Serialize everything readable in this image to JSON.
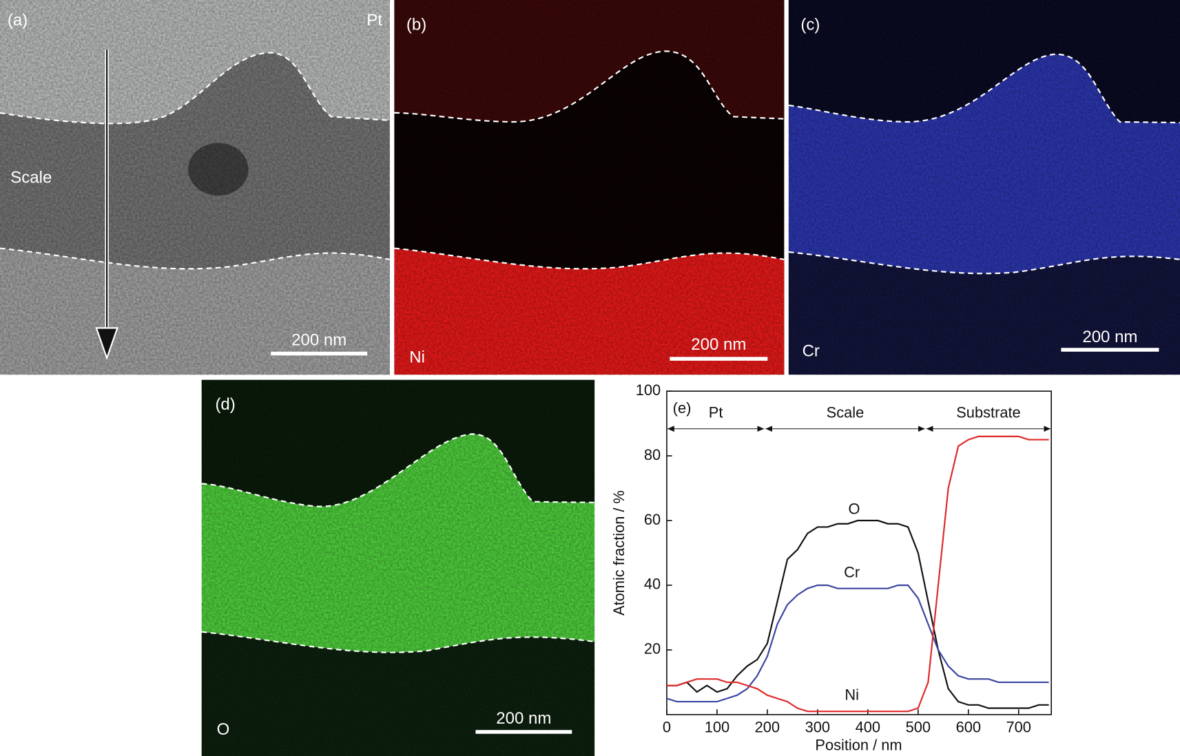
{
  "panels": [
    {
      "label": "(a)",
      "top": "Pt",
      "middle": "Scale",
      "scale_bar": "200 nm"
    },
    {
      "label": "(b)",
      "element": "Ni",
      "scale_bar": "200 nm"
    },
    {
      "label": "(c)",
      "element": "Cr",
      "scale_bar": "200 nm"
    },
    {
      "label": "(d)",
      "element": "O",
      "scale_bar": "200 nm"
    }
  ],
  "chart_data": {
    "type": "line",
    "label": "(e)",
    "x_label": "Position / nm",
    "y_label": "Atomic fraction / %",
    "xlim": [
      0,
      765
    ],
    "ylim": [
      0,
      100
    ],
    "xticks": [
      0,
      100,
      200,
      300,
      400,
      500,
      600,
      700
    ],
    "yticks": [
      20,
      40,
      60,
      80,
      100
    ],
    "regions": [
      {
        "label": "Pt",
        "from": 0,
        "to": 195
      },
      {
        "label": "Scale",
        "from": 195,
        "to": 515
      },
      {
        "label": "Substrate",
        "from": 515,
        "to": 765
      }
    ],
    "x": [
      0,
      20,
      40,
      60,
      80,
      100,
      120,
      140,
      160,
      180,
      200,
      220,
      240,
      260,
      280,
      300,
      320,
      340,
      360,
      380,
      400,
      420,
      440,
      460,
      480,
      500,
      520,
      540,
      560,
      580,
      600,
      620,
      640,
      660,
      680,
      700,
      720,
      740,
      760
    ],
    "series": [
      {
        "name": "O",
        "color": "#111111",
        "values": [
          9,
          9,
          10,
          7,
          9,
          7,
          8,
          12,
          15,
          17,
          22,
          35,
          48,
          51,
          56,
          58,
          58,
          59,
          59,
          60,
          60,
          60,
          59,
          59,
          58,
          50,
          35,
          20,
          8,
          4,
          3,
          3,
          2,
          2,
          2,
          2,
          2,
          3,
          3
        ]
      },
      {
        "name": "Cr",
        "color": "#3a44a0",
        "values": [
          5,
          4,
          4,
          4,
          4,
          4,
          5,
          6,
          8,
          12,
          18,
          28,
          34,
          37,
          39,
          40,
          40,
          39,
          39,
          39,
          39,
          39,
          39,
          40,
          40,
          36,
          28,
          20,
          15,
          12,
          11,
          11,
          11,
          10,
          10,
          10,
          10,
          10,
          10
        ]
      },
      {
        "name": "Ni",
        "color": "#e02828",
        "values": [
          9,
          9,
          10,
          11,
          11,
          11,
          10,
          10,
          9,
          8,
          6,
          5,
          4,
          2,
          1,
          1,
          1,
          1,
          1,
          1,
          1,
          1,
          1,
          1,
          1,
          2,
          10,
          40,
          70,
          83,
          85,
          86,
          86,
          86,
          86,
          86,
          85,
          85,
          85
        ]
      }
    ]
  }
}
